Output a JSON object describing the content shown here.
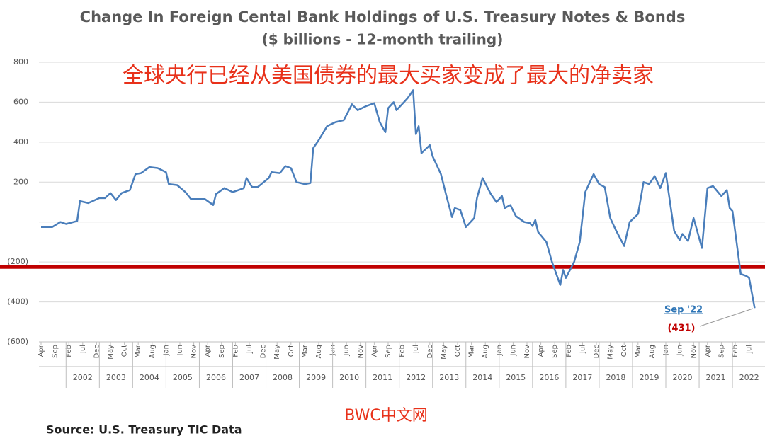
{
  "chart_data": {
    "type": "line",
    "title": "Change In Foreign Cental Bank Holdings of U.S. Treasury Notes & Bonds",
    "subtitle": "($ billions - 12-month trailing)",
    "headline": "全球央行已经从美国债券的最大买家变成了最大的净卖家",
    "watermark": "BWC中文网",
    "source": "Source:  U.S. Treasury TIC Data",
    "annotation": {
      "title": "Sep '22",
      "label": "(431)"
    },
    "x": [
      "2001-04",
      "2001-08",
      "2001-11",
      "2002-01",
      "2002-05",
      "2002-06",
      "2002-09",
      "2003-01",
      "2003-03",
      "2003-05",
      "2003-07",
      "2003-09",
      "2003-12",
      "2004-02",
      "2004-04",
      "2004-07",
      "2004-10",
      "2005-01",
      "2005-02",
      "2005-05",
      "2005-08",
      "2005-10",
      "2006-03",
      "2006-06",
      "2006-07",
      "2006-10",
      "2007-01",
      "2007-05",
      "2007-06",
      "2007-08",
      "2007-10",
      "2008-02",
      "2008-03",
      "2008-06",
      "2008-08",
      "2008-10",
      "2008-12",
      "2009-03",
      "2009-05",
      "2009-06",
      "2009-08",
      "2009-11",
      "2010-02",
      "2010-05",
      "2010-08",
      "2010-10",
      "2011-01",
      "2011-04",
      "2011-06",
      "2011-08",
      "2011-09",
      "2011-11",
      "2011-12",
      "2012-02",
      "2012-04",
      "2012-06",
      "2012-07",
      "2012-08",
      "2012-09",
      "2012-12",
      "2013-01",
      "2013-04",
      "2013-06",
      "2013-08",
      "2013-09",
      "2013-11",
      "2014-01",
      "2014-04",
      "2014-05",
      "2014-07",
      "2014-10",
      "2014-12",
      "2015-02",
      "2015-03",
      "2015-05",
      "2015-07",
      "2015-10",
      "2015-12",
      "2016-01",
      "2016-02",
      "2016-03",
      "2016-06",
      "2016-08",
      "2016-11",
      "2016-12",
      "2017-01",
      "2017-04",
      "2017-06",
      "2017-08",
      "2017-11",
      "2018-01",
      "2018-03",
      "2018-05",
      "2018-07",
      "2018-10",
      "2018-12",
      "2019-03",
      "2019-05",
      "2019-07",
      "2019-09",
      "2019-11",
      "2020-01",
      "2020-04",
      "2020-06",
      "2020-07",
      "2020-09",
      "2020-11",
      "2021-02",
      "2021-04",
      "2021-06",
      "2021-09",
      "2021-11",
      "2021-12",
      "2022-01",
      "2022-04",
      "2022-06",
      "2022-07",
      "2022-09"
    ],
    "series": [
      {
        "color": "#4a7ebb",
        "values": [
          -25,
          -25,
          0,
          -10,
          5,
          105,
          95,
          120,
          120,
          145,
          110,
          145,
          160,
          240,
          245,
          275,
          270,
          250,
          190,
          185,
          150,
          115,
          115,
          85,
          140,
          170,
          150,
          170,
          220,
          175,
          175,
          220,
          250,
          245,
          280,
          270,
          200,
          190,
          195,
          370,
          410,
          480,
          500,
          510,
          590,
          560,
          580,
          595,
          500,
          450,
          570,
          600,
          560,
          590,
          620,
          660,
          440,
          480,
          345,
          385,
          330,
          240,
          130,
          25,
          70,
          60,
          -25,
          20,
          120,
          220,
          140,
          100,
          130,
          70,
          85,
          30,
          0,
          -5,
          -20,
          10,
          -50,
          -100,
          -200,
          -315,
          -240,
          -280,
          -200,
          -100,
          150,
          240,
          190,
          175,
          20,
          -40,
          -120,
          0,
          40,
          200,
          190,
          230,
          170,
          245,
          -45,
          -90,
          -60,
          -95,
          20,
          -130,
          170,
          180,
          130,
          160,
          70,
          55,
          -260,
          -270,
          -280,
          -431
        ]
      }
    ],
    "ylim": [
      -600,
      800
    ],
    "yticks": [
      {
        "value": -600,
        "label": "(600)"
      },
      {
        "value": -400,
        "label": "(400)"
      },
      {
        "value": -200,
        "label": "(200)"
      },
      {
        "value": 0,
        "label": "-"
      },
      200,
      400,
      600,
      800
    ],
    "xticks": [
      {
        "value": "2001-04",
        "label": "Apr"
      },
      {
        "value": "2001-09",
        "label": "Sep"
      },
      {
        "value": "2002-02",
        "label": "Feb"
      },
      {
        "value": "2002-07",
        "label": "Jul"
      },
      {
        "value": "2002-12",
        "label": "Dec"
      },
      {
        "value": "2003-05",
        "label": "May"
      },
      {
        "value": "2003-10",
        "label": "Oct"
      },
      {
        "value": "2004-03",
        "label": "Mar"
      },
      {
        "value": "2004-08",
        "label": "Aug"
      },
      {
        "value": "2005-01",
        "label": "Jan"
      },
      {
        "value": "2005-06",
        "label": "Jun"
      },
      {
        "value": "2005-11",
        "label": "Nov"
      },
      {
        "value": "2006-04",
        "label": "Apr"
      },
      {
        "value": "2006-09",
        "label": "Sep"
      },
      {
        "value": "2007-02",
        "label": "Feb"
      },
      {
        "value": "2007-07",
        "label": "Jul"
      },
      {
        "value": "2007-12",
        "label": "Dec"
      },
      {
        "value": "2008-05",
        "label": "May"
      },
      {
        "value": "2008-10",
        "label": "Oct"
      },
      {
        "value": "2009-03",
        "label": "Mar"
      },
      {
        "value": "2009-08",
        "label": "Aug"
      },
      {
        "value": "2010-01",
        "label": "Jan"
      },
      {
        "value": "2010-06",
        "label": "Jun"
      },
      {
        "value": "2010-11",
        "label": "Nov"
      },
      {
        "value": "2011-04",
        "label": "Apr"
      },
      {
        "value": "2011-09",
        "label": "Sep"
      },
      {
        "value": "2012-02",
        "label": "Feb"
      },
      {
        "value": "2012-07",
        "label": "Jul"
      },
      {
        "value": "2012-12",
        "label": "Dec"
      },
      {
        "value": "2013-05",
        "label": "May"
      },
      {
        "value": "2013-10",
        "label": "Oct"
      },
      {
        "value": "2014-03",
        "label": "Mar"
      },
      {
        "value": "2014-08",
        "label": "Aug"
      },
      {
        "value": "2015-01",
        "label": "Jan"
      },
      {
        "value": "2015-06",
        "label": "Jun"
      },
      {
        "value": "2015-11",
        "label": "Nov"
      },
      {
        "value": "2016-04",
        "label": "Apr"
      },
      {
        "value": "2016-09",
        "label": "Sep"
      },
      {
        "value": "2017-02",
        "label": "Feb"
      },
      {
        "value": "2017-07",
        "label": "Jul"
      },
      {
        "value": "2017-12",
        "label": "Dec"
      },
      {
        "value": "2018-05",
        "label": "May"
      },
      {
        "value": "2018-10",
        "label": "Oct"
      },
      {
        "value": "2019-03",
        "label": "Mar"
      },
      {
        "value": "2019-08",
        "label": "Aug"
      },
      {
        "value": "2020-01",
        "label": "Jan"
      },
      {
        "value": "2020-06",
        "label": "Jun"
      },
      {
        "value": "2020-11",
        "label": "Nov"
      },
      {
        "value": "2021-04",
        "label": "Apr"
      },
      {
        "value": "2021-09",
        "label": "Sep"
      },
      {
        "value": "2022-02",
        "label": "Feb"
      },
      {
        "value": "2022-07",
        "label": "Jul"
      }
    ],
    "year_labels": [
      2002,
      2003,
      2004,
      2005,
      2006,
      2007,
      2008,
      2009,
      2010,
      2011,
      2012,
      2013,
      2014,
      2015,
      2016,
      2017,
      2018,
      2019,
      2020,
      2021,
      2022
    ],
    "reference_line": {
      "value": -225,
      "color": "#c00000"
    },
    "grid": true
  }
}
